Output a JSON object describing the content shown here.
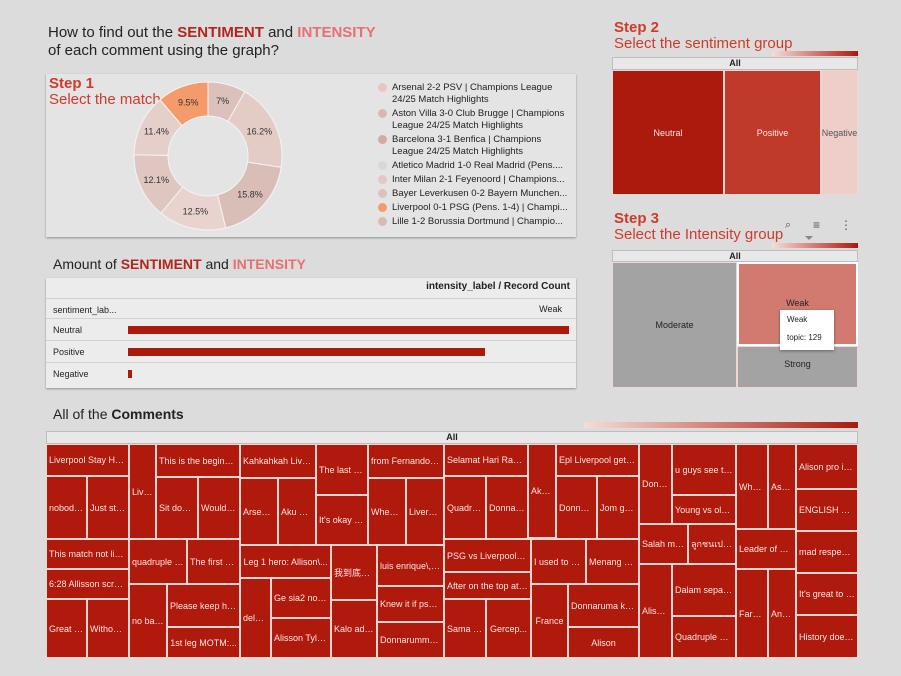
{
  "header": {
    "line1_pre": "How to find out the ",
    "line1_sentiment": "SENTIMENT",
    "line1_and": " and ",
    "line1_intensity": "INTENSITY",
    "line2": "of each comment using the graph?"
  },
  "step1": {
    "step": "Step 1",
    "label": "Select the match",
    "donut_labels": [
      "7%",
      "16.2%",
      "15.8%",
      "12.5%",
      "12.1%",
      "11.4%",
      "9.5%"
    ],
    "legend": [
      {
        "text": "Arsenal 2-2 PSV | Champions League 24/25 Match Highlights",
        "color": "#e8c5bf"
      },
      {
        "text": "Aston Villa 3-0 Club Brugge | Champions League 24/25 Match Highlights",
        "color": "#dcb7b0"
      },
      {
        "text": "Barcelona 3-1 Benfica | Champions League 24/25 Match Highlights",
        "color": "#d4aaa3"
      },
      {
        "text": "Atletico Madrid 1-0 Real Madrid (Pens....",
        "color": "#d8d8d8"
      },
      {
        "text": "Inter Milan 2-1 Feyenoord | Champions...",
        "color": "#e2c8c3"
      },
      {
        "text": "Bayer Leverkusen 0-2 Bayern Munchen...",
        "color": "#ddc2bc"
      },
      {
        "text": "Liverpool 0-1 PSG (Pens. 1-4) | Champi...",
        "color": "#f59a6a"
      },
      {
        "text": "Lille 1-2 Borussia Dortmund | Champio...",
        "color": "#dcbab4"
      }
    ]
  },
  "step2": {
    "step": "Step 2",
    "label": "Select the sentiment group",
    "all": "All",
    "cells": [
      {
        "label": "Neutral",
        "color": "#ab1a0b"
      },
      {
        "label": "Positive",
        "color": "#c03a2c"
      },
      {
        "label": "Negative",
        "color": "#efcdc9"
      }
    ]
  },
  "step3": {
    "step": "Step 3",
    "label": "Select the Intensity group",
    "all": "All",
    "cells": [
      {
        "label": "Moderate",
        "color": "#a3a3a3"
      },
      {
        "label": "Weak",
        "color": "#d37a70"
      },
      {
        "label": "Strong",
        "color": "#a3a3a3"
      }
    ],
    "tooltip": {
      "title": "Weak",
      "value": "topic: 129"
    }
  },
  "amount": {
    "title_pre": "Amount of ",
    "title_sentiment": "SENTIMENT",
    "title_and": " and ",
    "title_intensity": "INTENSITY",
    "table_header": "intensity_label / Record Count",
    "row_header": "sentiment_lab...",
    "col_header": "Weak",
    "rows": [
      {
        "label": "Neutral",
        "value": 100
      },
      {
        "label": "Positive",
        "value": 81
      },
      {
        "label": "Negative",
        "value": 1
      }
    ]
  },
  "comments": {
    "title_pre": "All of the ",
    "title_bold": "Comments",
    "all": "All",
    "cells": [
      "Liverpool Stay Hu...",
      "nobody's...",
      "Just sto...",
      "This match not like...",
      "6:28 Allisson screami...",
      "Great bal...",
      "Without P...",
      "Liver...",
      "This is the beginnin...",
      "Sit down...",
      "Would b...",
      "quadruple =...",
      "The first ev...",
      "no ball...",
      "Please keep hun...",
      "1st leg MOTM:...",
      "Kahkahkah Liverp...",
      "Arsenal...",
      "Aku me...",
      "The last Eu...",
      "It's okay to...",
      "Leg 1 hero: Allison\\...",
      "delusi...",
      "Ge sia2 nont...",
      "Alisson Tyler...",
      "我到底哈...",
      "Kalo ada...",
      "from Fernando T...",
      "When y...",
      "Liverpo...",
      "luis enrique\\, w...",
      "Knew it if psg p...",
      "Donnarumma o...",
      "Selamat Hari Raya...",
      "Quadrup...",
      "Donnaru...",
      "Akhir...",
      "PSG vs Liverpool jus...",
      "After on the top at t...",
      "Sama na...",
      "Gercep...",
      "Epl Liverpool get 2...",
      "Donnaru...",
      "Jom gel...",
      "I used to pr...",
      "Menang me...",
      "France",
      "Donnaruma ker...",
      "Alison",
      "Donna...",
      "Salah mad...",
      "Alison...",
      "u guys see tha...",
      "Young vs old \\...",
      "ลูกชนเปล่าเ...",
      "Dalam sepak...",
      "Quadruple Slo...",
      "Wher...",
      "As so...",
      "Leader of gro...",
      "Farm...",
      "Anfie...",
      "Alison pro is l...",
      "ENGLISH 1-4...",
      "mad respect...",
      "It's great to s...",
      "History does..."
    ]
  }
}
